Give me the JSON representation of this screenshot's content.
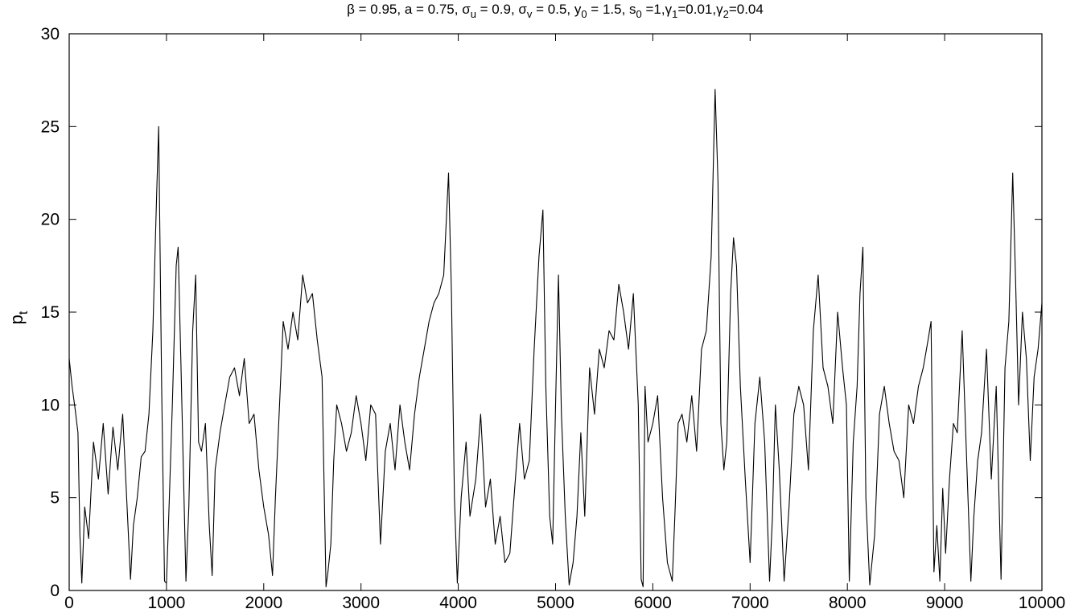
{
  "chart_data": {
    "type": "line",
    "title": "β = 0.95, a = 0.75, σ_u = 0.9, σ_v = 0.5, y_0 = 1.5, s_0 =1,γ_1=0.01,γ_2=0.04",
    "title_parts": {
      "beta": "β = 0.95, a = 0.75, ",
      "sigma": "σ",
      "u_sub": "u",
      "su_val": " = 0.9, ",
      "v_sub": "v",
      "sv_val": " = 0.5, y",
      "y_sub": "0",
      "y_val": " = 1.5, s",
      "s_sub": "0",
      "s_val": " =1,",
      "gamma": "γ",
      "g1_sub": "1",
      "g1_val": "=0.01,",
      "g2_sub": "2",
      "g2_val": "=0.04"
    },
    "xlabel": "",
    "ylabel": "p_t",
    "ylabel_parts": {
      "main": "p",
      "sub": "t"
    },
    "xlim": [
      0,
      10000
    ],
    "ylim": [
      0,
      30
    ],
    "xticks": [
      0,
      1000,
      2000,
      3000,
      4000,
      5000,
      6000,
      7000,
      8000,
      9000,
      10000
    ],
    "yticks": [
      0,
      5,
      10,
      15,
      20,
      25,
      30
    ],
    "grid": false,
    "line_color": "#000000",
    "x": [
      0,
      30,
      60,
      90,
      110,
      130,
      160,
      200,
      250,
      300,
      350,
      400,
      450,
      500,
      550,
      600,
      630,
      660,
      700,
      740,
      780,
      820,
      860,
      900,
      920,
      950,
      980,
      1000,
      1030,
      1060,
      1100,
      1120,
      1150,
      1200,
      1230,
      1270,
      1300,
      1330,
      1360,
      1400,
      1440,
      1470,
      1500,
      1550,
      1600,
      1650,
      1700,
      1750,
      1800,
      1850,
      1900,
      1950,
      2000,
      2050,
      2090,
      2120,
      2150,
      2200,
      2250,
      2300,
      2350,
      2400,
      2450,
      2500,
      2550,
      2600,
      2640,
      2660,
      2690,
      2720,
      2750,
      2800,
      2850,
      2900,
      2950,
      3000,
      3050,
      3100,
      3150,
      3200,
      3250,
      3300,
      3350,
      3400,
      3450,
      3500,
      3550,
      3600,
      3650,
      3700,
      3750,
      3800,
      3850,
      3900,
      3930,
      3960,
      3990,
      4030,
      4080,
      4120,
      4180,
      4230,
      4280,
      4330,
      4380,
      4430,
      4480,
      4530,
      4580,
      4630,
      4680,
      4730,
      4780,
      4830,
      4870,
      4900,
      4940,
      4970,
      5000,
      5030,
      5060,
      5100,
      5140,
      5180,
      5220,
      5260,
      5300,
      5350,
      5400,
      5450,
      5500,
      5550,
      5600,
      5650,
      5700,
      5750,
      5800,
      5850,
      5880,
      5900,
      5920,
      5950,
      6000,
      6050,
      6100,
      6150,
      6200,
      6230,
      6260,
      6300,
      6350,
      6400,
      6450,
      6500,
      6550,
      6600,
      6640,
      6670,
      6700,
      6730,
      6760,
      6800,
      6830,
      6860,
      6900,
      6950,
      7000,
      7050,
      7100,
      7150,
      7200,
      7230,
      7260,
      7300,
      7350,
      7400,
      7450,
      7500,
      7550,
      7600,
      7650,
      7700,
      7750,
      7800,
      7850,
      7900,
      7950,
      7990,
      8020,
      8060,
      8100,
      8130,
      8160,
      8190,
      8230,
      8280,
      8330,
      8380,
      8430,
      8480,
      8530,
      8580,
      8630,
      8680,
      8730,
      8780,
      8830,
      8860,
      8890,
      8920,
      8950,
      8980,
      9010,
      9050,
      9090,
      9130,
      9180,
      9230,
      9270,
      9300,
      9340,
      9380,
      9430,
      9480,
      9530,
      9580,
      9620,
      9660,
      9700,
      9730,
      9760,
      9800,
      9840,
      9880,
      9920,
      9960,
      10000
    ],
    "values": [
      12.5,
      11.0,
      9.8,
      8.5,
      3.0,
      0.4,
      4.5,
      2.8,
      8.0,
      6.0,
      9.0,
      5.2,
      8.8,
      6.5,
      9.5,
      4.0,
      0.6,
      3.5,
      5.0,
      7.2,
      7.5,
      9.5,
      14.0,
      21.5,
      25.0,
      11.0,
      0.5,
      0.4,
      5.0,
      10.0,
      17.5,
      18.5,
      12.0,
      0.5,
      4.5,
      14.0,
      17.0,
      8.0,
      7.5,
      9.0,
      3.5,
      0.8,
      6.5,
      8.5,
      10.0,
      11.5,
      12.0,
      10.5,
      12.5,
      9.0,
      9.5,
      6.5,
      4.5,
      3.0,
      0.8,
      5.0,
      8.5,
      14.5,
      13.0,
      15.0,
      13.5,
      17.0,
      15.5,
      16.0,
      13.5,
      11.5,
      0.2,
      1.0,
      2.5,
      7.0,
      10.0,
      9.0,
      7.5,
      8.5,
      10.5,
      9.0,
      7.0,
      10.0,
      9.5,
      2.5,
      7.5,
      9.0,
      6.5,
      10.0,
      8.0,
      6.5,
      9.5,
      11.5,
      13.0,
      14.5,
      15.5,
      16.0,
      17.0,
      22.5,
      16.0,
      5.0,
      0.4,
      5.0,
      8.0,
      4.0,
      6.0,
      9.5,
      4.5,
      6.0,
      2.5,
      4.0,
      1.5,
      2.0,
      5.5,
      9.0,
      6.0,
      7.0,
      13.0,
      18.0,
      20.5,
      11.0,
      4.0,
      2.5,
      10.0,
      17.0,
      9.5,
      4.0,
      0.3,
      1.5,
      4.0,
      8.5,
      4.0,
      12.0,
      9.5,
      13.0,
      12.0,
      14.0,
      13.5,
      16.5,
      15.0,
      13.0,
      16.0,
      10.0,
      0.6,
      0.2,
      11.0,
      8.0,
      9.0,
      10.5,
      5.0,
      1.5,
      0.5,
      4.5,
      9.0,
      9.5,
      8.0,
      10.5,
      7.5,
      13.0,
      14.0,
      18.0,
      27.0,
      22.0,
      9.0,
      6.5,
      8.0,
      16.0,
      19.0,
      17.5,
      11.0,
      6.0,
      1.5,
      9.0,
      11.5,
      8.0,
      0.5,
      4.0,
      10.0,
      6.5,
      0.5,
      4.5,
      9.5,
      11.0,
      10.0,
      6.5,
      14.0,
      17.0,
      12.0,
      11.0,
      9.0,
      15.0,
      12.0,
      10.0,
      0.5,
      8.0,
      11.0,
      16.0,
      18.5,
      5.0,
      0.3,
      3.0,
      9.5,
      11.0,
      9.0,
      7.5,
      7.0,
      5.0,
      10.0,
      9.0,
      11.0,
      12.0,
      13.5,
      14.5,
      1.0,
      3.5,
      0.5,
      5.5,
      2.0,
      6.0,
      9.0,
      8.5,
      14.0,
      6.5,
      0.5,
      4.0,
      7.0,
      8.5,
      13.0,
      6.0,
      11.0,
      0.6,
      12.0,
      14.5,
      22.5,
      16.5,
      10.0,
      15.0,
      12.5,
      7.0,
      11.5,
      13.0,
      15.5
    ]
  }
}
